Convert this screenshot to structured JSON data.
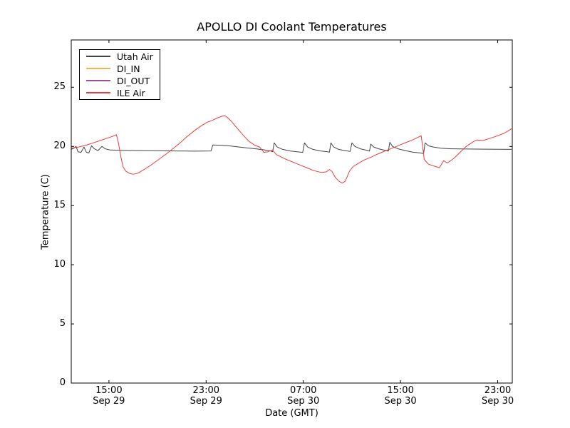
{
  "chart_data": {
    "type": "line",
    "title": "APOLLO DI Coolant Temperatures",
    "xlabel": "Date (GMT)",
    "ylabel": "Temperature (C)",
    "x_unit": "hours since Sep 29 00:00 GMT",
    "xlim_hours": [
      11.9,
      48.2
    ],
    "ylim": [
      0,
      29
    ],
    "grid": false,
    "legend_position": "upper left",
    "x_ticks": [
      {
        "hour": 15,
        "time": "15:00",
        "date": "Sep 29"
      },
      {
        "hour": 23,
        "time": "23:00",
        "date": "Sep 29"
      },
      {
        "hour": 31,
        "time": "07:00",
        "date": "Sep 30"
      },
      {
        "hour": 39,
        "time": "15:00",
        "date": "Sep 30"
      },
      {
        "hour": 47,
        "time": "23:00",
        "date": "Sep 30"
      }
    ],
    "y_ticks": [
      {
        "value": 0,
        "label": "0"
      },
      {
        "value": 5,
        "label": "5"
      },
      {
        "value": 10,
        "label": "10"
      },
      {
        "value": 15,
        "label": "15"
      },
      {
        "value": 20,
        "label": "20"
      },
      {
        "value": 25,
        "label": "25"
      }
    ],
    "series": [
      {
        "name": "Utah Air",
        "color": "#444444",
        "points": [
          [
            11.9,
            19.75
          ],
          [
            12.1,
            19.85
          ],
          [
            12.3,
            20.0
          ],
          [
            12.45,
            19.55
          ],
          [
            12.7,
            19.5
          ],
          [
            12.95,
            19.95
          ],
          [
            13.15,
            19.5
          ],
          [
            13.35,
            19.45
          ],
          [
            13.57,
            20.05
          ],
          [
            13.8,
            19.8
          ],
          [
            14.1,
            19.65
          ],
          [
            14.42,
            20.0
          ],
          [
            14.7,
            19.8
          ],
          [
            15.1,
            19.7
          ],
          [
            16.0,
            19.67
          ],
          [
            17.5,
            19.65
          ],
          [
            19.0,
            19.64
          ],
          [
            20.5,
            19.62
          ],
          [
            22.0,
            19.6
          ],
          [
            23.4,
            19.62
          ],
          [
            23.55,
            20.12
          ],
          [
            24.6,
            20.08
          ],
          [
            25.3,
            20.0
          ],
          [
            26.1,
            19.9
          ],
          [
            26.9,
            19.82
          ],
          [
            27.7,
            19.72
          ],
          [
            28.3,
            19.62
          ],
          [
            28.48,
            19.55
          ],
          [
            28.6,
            20.3
          ],
          [
            28.85,
            19.95
          ],
          [
            29.3,
            19.75
          ],
          [
            29.9,
            19.62
          ],
          [
            30.5,
            19.55
          ],
          [
            30.95,
            19.5
          ],
          [
            31.1,
            20.3
          ],
          [
            31.35,
            19.95
          ],
          [
            31.8,
            19.75
          ],
          [
            32.4,
            19.62
          ],
          [
            33.0,
            19.55
          ],
          [
            33.15,
            19.52
          ],
          [
            33.27,
            20.3
          ],
          [
            33.5,
            19.95
          ],
          [
            33.9,
            19.75
          ],
          [
            34.4,
            19.65
          ],
          [
            34.85,
            19.58
          ],
          [
            35.0,
            20.3
          ],
          [
            35.25,
            20.0
          ],
          [
            35.7,
            19.8
          ],
          [
            36.2,
            19.68
          ],
          [
            36.45,
            19.6
          ],
          [
            36.55,
            20.2
          ],
          [
            36.8,
            19.95
          ],
          [
            37.2,
            19.8
          ],
          [
            37.7,
            19.68
          ],
          [
            38.0,
            19.6
          ],
          [
            38.12,
            20.35
          ],
          [
            38.35,
            20.0
          ],
          [
            38.8,
            19.8
          ],
          [
            39.4,
            19.65
          ],
          [
            40.0,
            19.52
          ],
          [
            40.6,
            19.45
          ],
          [
            40.9,
            19.4
          ],
          [
            41.02,
            20.3
          ],
          [
            41.3,
            20.05
          ],
          [
            41.7,
            19.95
          ],
          [
            42.3,
            19.85
          ],
          [
            43.2,
            19.8
          ],
          [
            44.5,
            19.78
          ],
          [
            46.0,
            19.77
          ],
          [
            47.0,
            19.76
          ],
          [
            48.15,
            19.75
          ]
        ]
      },
      {
        "name": "DI_IN",
        "color": "#ffaf4d",
        "points": []
      },
      {
        "name": "DI_OUT",
        "color": "#9b4f9b",
        "points": []
      },
      {
        "name": "ILE Air",
        "color": "#ee3b3b",
        "points": [
          [
            11.9,
            19.85
          ],
          [
            12.5,
            19.95
          ],
          [
            13.1,
            20.1
          ],
          [
            13.7,
            20.3
          ],
          [
            14.3,
            20.5
          ],
          [
            14.85,
            20.7
          ],
          [
            15.3,
            20.85
          ],
          [
            15.62,
            21.0
          ],
          [
            15.78,
            20.3
          ],
          [
            15.95,
            19.3
          ],
          [
            16.15,
            18.3
          ],
          [
            16.4,
            17.9
          ],
          [
            16.7,
            17.72
          ],
          [
            17.0,
            17.65
          ],
          [
            17.4,
            17.75
          ],
          [
            17.9,
            18.05
          ],
          [
            18.5,
            18.45
          ],
          [
            19.1,
            18.9
          ],
          [
            19.7,
            19.35
          ],
          [
            20.2,
            19.75
          ],
          [
            20.8,
            20.25
          ],
          [
            21.4,
            20.8
          ],
          [
            22.0,
            21.3
          ],
          [
            22.6,
            21.75
          ],
          [
            23.1,
            22.05
          ],
          [
            23.5,
            22.2
          ],
          [
            23.9,
            22.4
          ],
          [
            24.3,
            22.55
          ],
          [
            24.55,
            22.6
          ],
          [
            24.75,
            22.45
          ],
          [
            25.1,
            22.1
          ],
          [
            25.5,
            21.6
          ],
          [
            26.1,
            20.9
          ],
          [
            26.5,
            20.45
          ],
          [
            27.0,
            20.1
          ],
          [
            27.4,
            19.95
          ],
          [
            27.75,
            19.5
          ],
          [
            28.1,
            19.55
          ],
          [
            28.45,
            19.7
          ],
          [
            28.8,
            19.3
          ],
          [
            29.2,
            19.1
          ],
          [
            29.6,
            18.9
          ],
          [
            30.2,
            18.65
          ],
          [
            30.8,
            18.4
          ],
          [
            31.4,
            18.15
          ],
          [
            31.9,
            17.95
          ],
          [
            32.5,
            17.8
          ],
          [
            32.9,
            17.85
          ],
          [
            33.15,
            18.05
          ],
          [
            33.35,
            17.9
          ],
          [
            33.65,
            17.35
          ],
          [
            33.95,
            17.05
          ],
          [
            34.2,
            16.9
          ],
          [
            34.45,
            17.05
          ],
          [
            34.8,
            17.9
          ],
          [
            35.1,
            18.3
          ],
          [
            35.5,
            18.55
          ],
          [
            36.0,
            18.85
          ],
          [
            36.6,
            19.1
          ],
          [
            37.1,
            19.35
          ],
          [
            37.7,
            19.6
          ],
          [
            38.3,
            19.85
          ],
          [
            38.9,
            20.1
          ],
          [
            39.5,
            20.35
          ],
          [
            40.1,
            20.6
          ],
          [
            40.7,
            20.9
          ],
          [
            40.82,
            20.0
          ],
          [
            40.95,
            18.9
          ],
          [
            41.3,
            18.5
          ],
          [
            41.9,
            18.3
          ],
          [
            42.2,
            18.2
          ],
          [
            42.55,
            18.8
          ],
          [
            42.85,
            18.6
          ],
          [
            43.4,
            19.0
          ],
          [
            44.0,
            19.6
          ],
          [
            44.4,
            20.0
          ],
          [
            45.0,
            20.4
          ],
          [
            45.3,
            20.55
          ],
          [
            45.8,
            20.5
          ],
          [
            46.4,
            20.7
          ],
          [
            47.0,
            20.9
          ],
          [
            47.5,
            21.1
          ],
          [
            47.85,
            21.3
          ],
          [
            48.15,
            21.5
          ]
        ]
      }
    ]
  }
}
